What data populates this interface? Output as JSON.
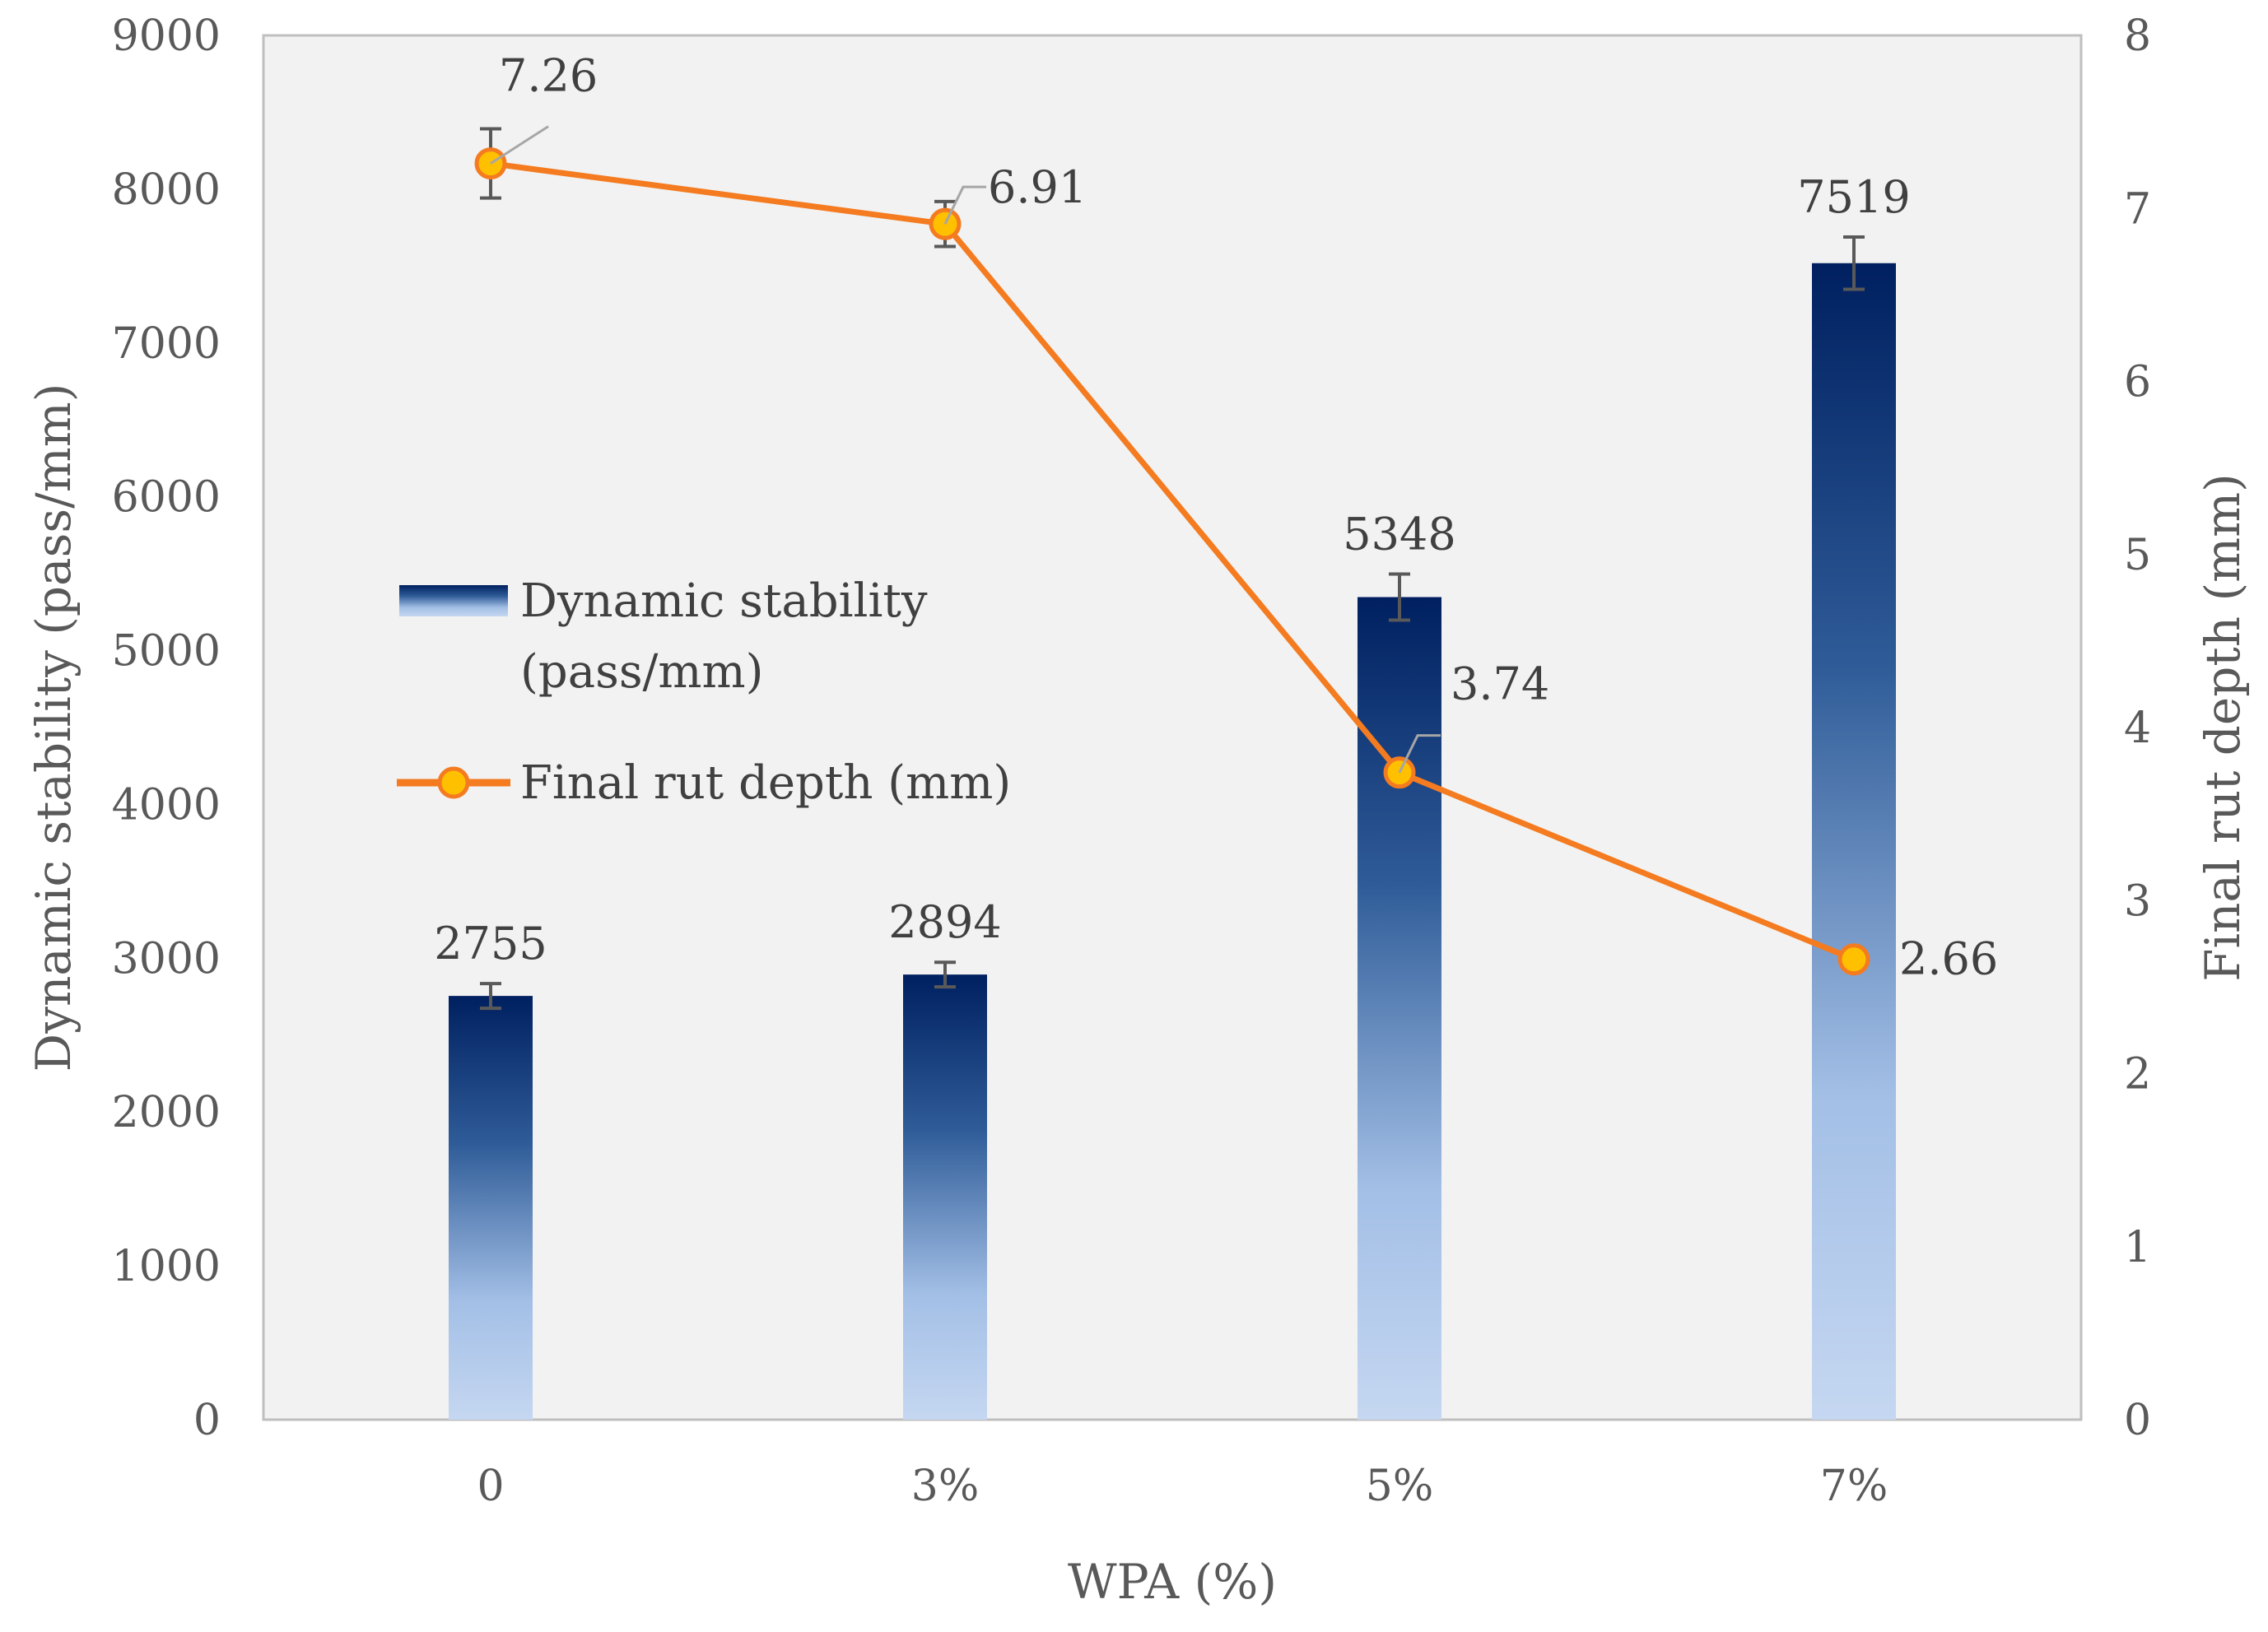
{
  "chart_data": {
    "type": "bar",
    "categories": [
      "0",
      "3%",
      "5%",
      "7%"
    ],
    "xlabel": "WPA (%)",
    "ylabel": "Dynamic stability (pass/mm)",
    "y2label": "Final rut depth (mm)",
    "ylim": [
      0,
      9000
    ],
    "y2lim": [
      0,
      8
    ],
    "yticks": [
      "0",
      "1000",
      "2000",
      "3000",
      "4000",
      "5000",
      "6000",
      "7000",
      "8000",
      "9000"
    ],
    "y2ticks": [
      "0",
      "1",
      "2",
      "3",
      "4",
      "5",
      "6",
      "7",
      "8"
    ],
    "grid": false,
    "legend_position": "center-left",
    "series": [
      {
        "name": "Dynamic stability (pass/mm)",
        "type": "bar",
        "axis": "left",
        "values": [
          2755,
          2894,
          5348,
          7519
        ],
        "labels": [
          "2755",
          "2894",
          "5348",
          "7519"
        ],
        "error": [
          80,
          80,
          150,
          170
        ],
        "color_top": "#002060",
        "color_bottom": "#c5d7f1"
      },
      {
        "name": "Final rut depth (mm)",
        "type": "line",
        "axis": "right",
        "values": [
          7.26,
          6.91,
          3.74,
          2.66
        ],
        "labels": [
          "7.26",
          "6.91",
          "3.74",
          "2.66"
        ],
        "error": [
          0.2,
          0.13,
          0,
          0
        ],
        "color": "#f47b20",
        "marker_fill": "#ffc000"
      }
    ],
    "legend": {
      "bar_label_line1": "Dynamic stability",
      "bar_label_line2": "(pass/mm)",
      "line_label": "Final rut depth (mm)"
    }
  }
}
